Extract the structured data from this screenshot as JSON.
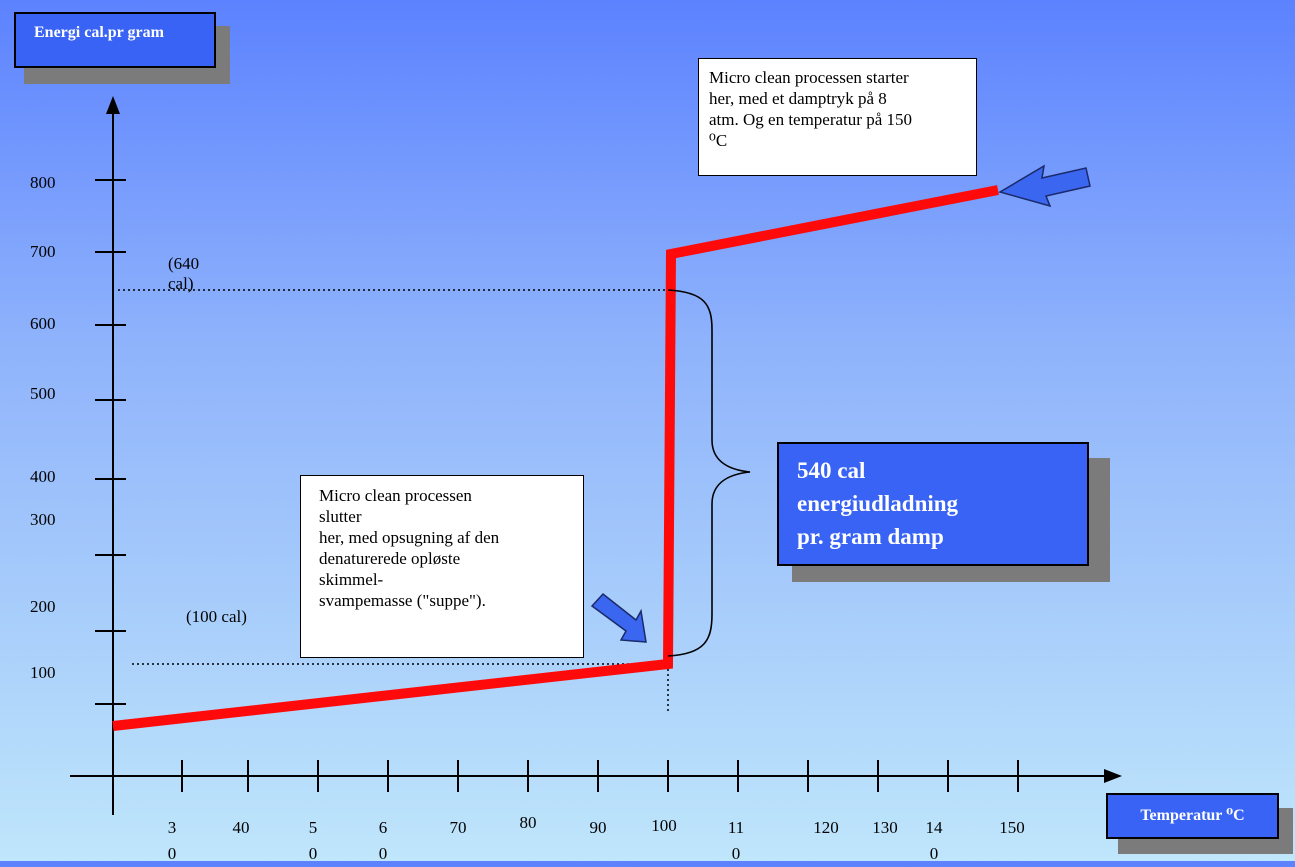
{
  "y_axis_box": {
    "text": "Energi cal.pr gram"
  },
  "x_axis_box": {
    "text": "Temperatur ⁰C"
  },
  "y_ticks": [
    "800",
    "700",
    "600",
    "500",
    "400",
    "300",
    "200",
    "100"
  ],
  "x_ticks": [
    {
      "top": "3",
      "bottom": "0"
    },
    {
      "top": "40",
      "bottom": ""
    },
    {
      "top": "5",
      "bottom": "0"
    },
    {
      "top": "6",
      "bottom": "0"
    },
    {
      "top": "70",
      "bottom": ""
    },
    {
      "top": "80",
      "bottom": ""
    },
    {
      "top": "90",
      "bottom": ""
    },
    {
      "top": "100",
      "bottom": ""
    },
    {
      "top": "11",
      "bottom": "0"
    },
    {
      "top": "120",
      "bottom": ""
    },
    {
      "top": "130",
      "bottom": ""
    },
    {
      "top": "14",
      "bottom": "0"
    },
    {
      "top": "150",
      "bottom": ""
    }
  ],
  "ref_640": {
    "line1": "(640",
    "line2": "cal)"
  },
  "ref_100": {
    "text": "(100 cal)"
  },
  "callout_start": {
    "lines": [
      "Micro clean processen starter",
      "her, med et damptryk på 8",
      "atm. Og en temperatur på 150",
      "⁰C"
    ]
  },
  "callout_end": {
    "lines": [
      "Micro clean processen",
      "slutter",
      "her, med opsugning af den",
      "denaturerede opløste",
      "skimmel-",
      "svampemasse (\"suppe\")."
    ]
  },
  "energy_box": {
    "lines": [
      "540 cal",
      "energiudladning",
      "pr. gram damp"
    ]
  },
  "colors": {
    "curve": "#ff0a0a",
    "box_blue": "#3863f5",
    "shadow": "#7b7b7b",
    "arrow_fill": "#3a66f0"
  },
  "chart_data": {
    "type": "line",
    "ylabel": "Energi cal.pr gram",
    "xlabel": "Temperatur ⁰C",
    "series": [
      {
        "x": [
          20,
          100,
          100,
          150
        ],
        "y": [
          0,
          100,
          640,
          780
        ]
      }
    ],
    "annotations": [
      "(640 cal)",
      "(100 cal)",
      "540 cal energiudladning pr. gram damp"
    ]
  }
}
